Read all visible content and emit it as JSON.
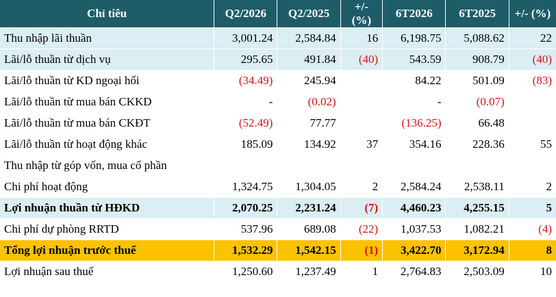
{
  "header": [
    "Chỉ tiêu",
    "Q2/2026",
    "Q2/2025",
    "+/- (%)",
    "6T2026",
    "6T2025",
    "+/- (%)"
  ],
  "rows": [
    {
      "label": "Thu nhập lãi thuần",
      "cells": [
        "3,001.24",
        "2,584.84",
        "16",
        "6,198.75",
        "5,088.62",
        "22"
      ],
      "style": "shade"
    },
    {
      "label": "Lãi/lỗ thuần từ dịch vụ",
      "cells": [
        "295.65",
        "491.84",
        "(40)",
        "543.59",
        "908.79",
        "(40)"
      ],
      "style": "shade"
    },
    {
      "label": "Lãi/lỗ thuần từ KD ngoại hối",
      "cells": [
        "(34.49)",
        "245.94",
        "",
        "84.22",
        "501.09",
        "(83)"
      ],
      "style": "plain"
    },
    {
      "label": "Lãi/lỗ thuần từ mua bán CKKD",
      "cells": [
        "-",
        "(0.02)",
        "",
        "-",
        "(0.07)",
        ""
      ],
      "style": "plain"
    },
    {
      "label": "Lãi/lỗ thuần từ mua bán CKĐT",
      "cells": [
        "(52.49)",
        "77.77",
        "",
        "(136.25)",
        "66.48",
        ""
      ],
      "style": "plain"
    },
    {
      "label": "Lãi/lỗ thuần từ hoạt động khác",
      "cells": [
        "185.09",
        "134.92",
        "37",
        "354.16",
        "228.36",
        "55"
      ],
      "style": "plain"
    },
    {
      "label": "Thu nhập từ góp vốn, mua cổ phần",
      "cells": [
        "",
        "",
        "",
        "",
        "",
        ""
      ],
      "style": "plain"
    },
    {
      "label": "Chi phí hoạt động",
      "cells": [
        "1,324.75",
        "1,304.05",
        "2",
        "2,584.24",
        "2,538.11",
        "2"
      ],
      "style": "plain"
    },
    {
      "label": "Lợi nhuận thuần từ HĐKD",
      "cells": [
        "2,070.25",
        "2,231.24",
        "(7)",
        "4,460.23",
        "4,255.15",
        "5"
      ],
      "style": "shade bold"
    },
    {
      "label": "Chi phí dự phòng RRTD",
      "cells": [
        "537.96",
        "689.08",
        "(22)",
        "1,037.53",
        "1,082.21",
        "(4)"
      ],
      "style": "plain"
    },
    {
      "label": "Tổng lợi nhuận trước thuế",
      "cells": [
        "1,532.29",
        "1,542.15",
        "(1)",
        "3,422.70",
        "3,172.94",
        "8"
      ],
      "style": "highlight"
    },
    {
      "label": "Lợi nhuận sau thuế",
      "cells": [
        "1,250.60",
        "1,237.49",
        "1",
        "2,764.83",
        "2,503.09",
        "10"
      ],
      "style": "plain"
    }
  ],
  "colors": {
    "header_bg": "#1e5d68",
    "shade_bg": "#dbeef3",
    "highlight_bg": "#fcc200",
    "negative_text": "#e01010"
  }
}
